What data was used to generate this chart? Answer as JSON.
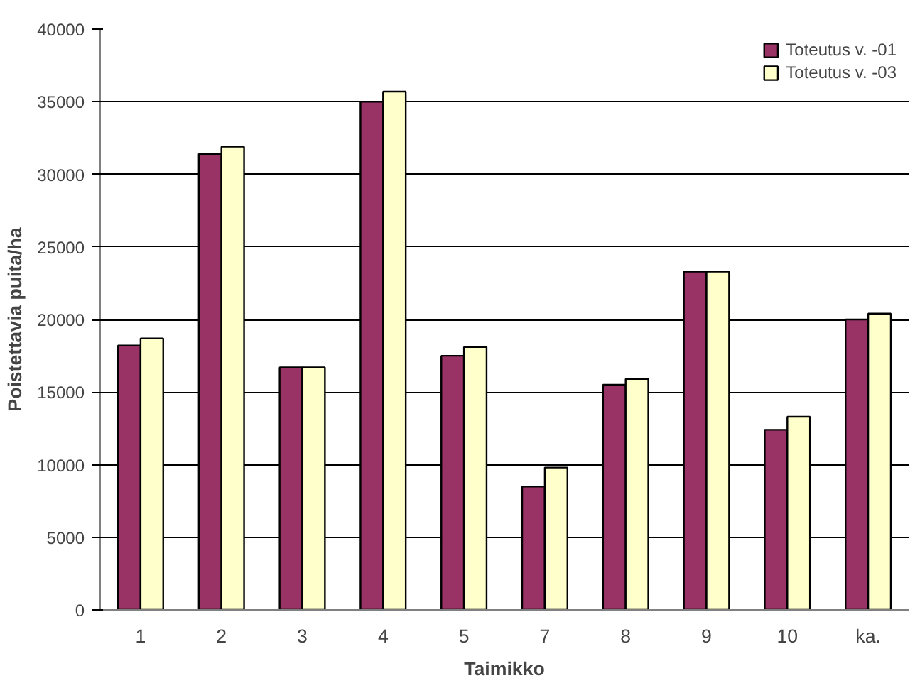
{
  "chart_data": {
    "type": "bar",
    "xlabel": "Taimikko",
    "ylabel": "Poistettavia puita/ha",
    "categories": [
      "1",
      "2",
      "3",
      "4",
      "5",
      "7",
      "8",
      "9",
      "10",
      "ka."
    ],
    "series": [
      {
        "name": "Toteutus v. -01",
        "color": "#993366",
        "values": [
          18200,
          31400,
          16700,
          35000,
          17500,
          8500,
          15500,
          23300,
          12400,
          20000
        ]
      },
      {
        "name": "Toteutus v. -03",
        "color": "#ffffcc",
        "values": [
          18700,
          31900,
          16700,
          35700,
          18100,
          9800,
          15900,
          23300,
          13300,
          20400
        ]
      }
    ],
    "ylim": [
      0,
      40000
    ],
    "yticks": [
      0,
      5000,
      10000,
      15000,
      20000,
      25000,
      30000,
      35000,
      40000
    ],
    "grid": "y",
    "legend": "top right"
  }
}
